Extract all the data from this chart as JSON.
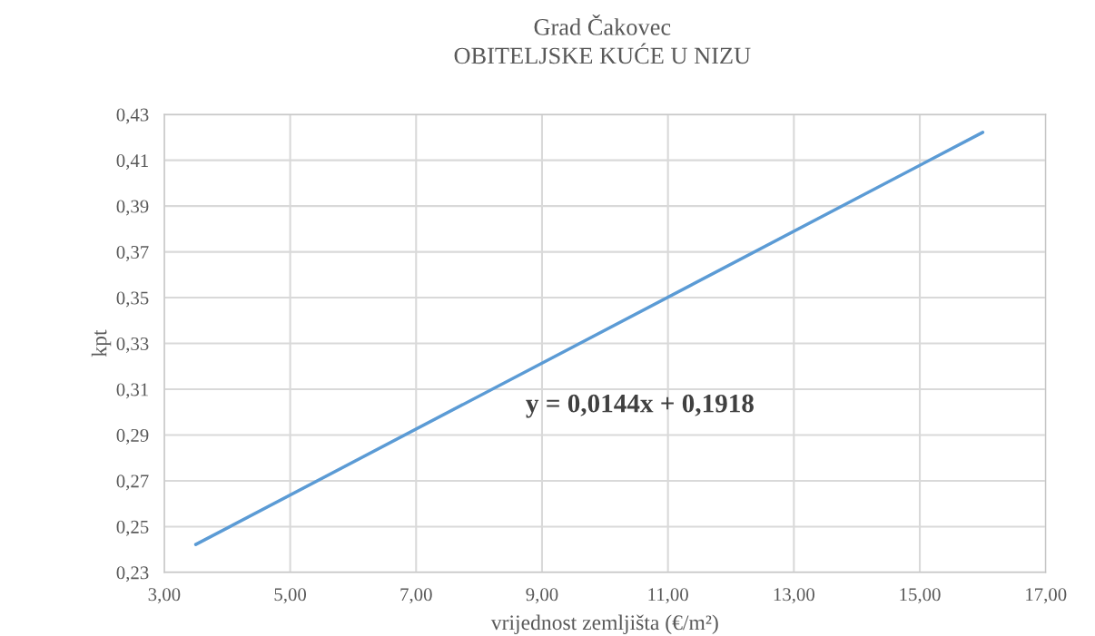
{
  "chart_data": {
    "type": "line",
    "title": "Grad Čakovec",
    "subtitle": "OBITELJSKE KUĆE U NIZU",
    "xlabel": "vrijednost zemljišta (€/m²)",
    "ylabel": "kpt",
    "x": [
      3.5,
      16
    ],
    "series": [
      {
        "color": "#5b9bd5",
        "values": [
          0.2422,
          0.4222
        ]
      }
    ],
    "xlim": [
      3,
      17
    ],
    "xticks": [
      {
        "value": 3,
        "label": "3,00"
      },
      {
        "value": 5,
        "label": "5,00"
      },
      {
        "value": 7,
        "label": "7,00"
      },
      {
        "value": 9,
        "label": "9,00"
      },
      {
        "value": 11,
        "label": "11,00"
      },
      {
        "value": 13,
        "label": "13,00"
      },
      {
        "value": 15,
        "label": "15,00"
      },
      {
        "value": 17,
        "label": "17,00"
      }
    ],
    "ylim": [
      0.23,
      0.43
    ],
    "yticks": [
      {
        "value": 0.23,
        "label": "0,23"
      },
      {
        "value": 0.25,
        "label": "0,25"
      },
      {
        "value": 0.27,
        "label": "0,27"
      },
      {
        "value": 0.29,
        "label": "0,29"
      },
      {
        "value": 0.31,
        "label": "0,31"
      },
      {
        "value": 0.33,
        "label": "0,33"
      },
      {
        "value": 0.35,
        "label": "0,35"
      },
      {
        "value": 0.37,
        "label": "0,37"
      },
      {
        "value": 0.39,
        "label": "0,39"
      },
      {
        "value": 0.41,
        "label": "0,41"
      },
      {
        "value": 0.43,
        "label": "0,43"
      }
    ],
    "annotations": [
      "y = 0,0144x + 0,1918"
    ],
    "grid": true,
    "legend": false,
    "marker": "none",
    "line_style": "solid"
  }
}
